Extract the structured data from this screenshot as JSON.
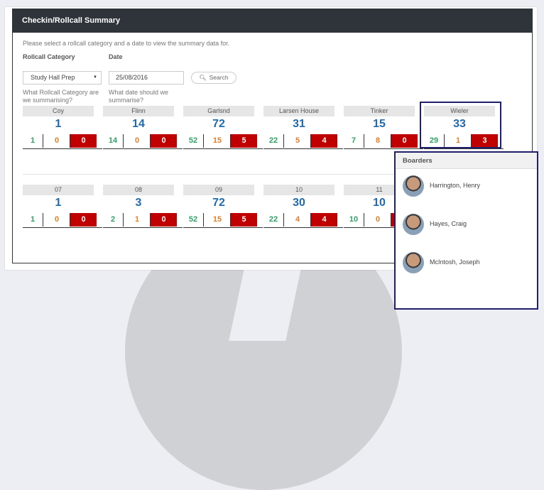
{
  "title": "Checkin/Rollcall Summary",
  "intro": "Please select a rollcall category and a date to view the summary data for.",
  "form": {
    "category_label": "Rollcall Category",
    "category_value": "Study Hall Prep",
    "category_help": "What Rollcall Category are we summarising?",
    "date_label": "Date",
    "date_value": "25/08/2016",
    "date_help": "What date should we summarise?",
    "search_label": "Search"
  },
  "colors": {
    "header": "#2e3439",
    "total": "#1f6aad",
    "green": "#2ea266",
    "orange": "#e57e27",
    "red": "#c00000",
    "highlight": "#1f1f6b"
  },
  "houses": [
    {
      "name": "Coy",
      "total": "1",
      "green": "1",
      "orange": "0",
      "red": "0"
    },
    {
      "name": "Flinn",
      "total": "14",
      "green": "14",
      "orange": "0",
      "red": "0"
    },
    {
      "name": "Garlsnd",
      "total": "72",
      "green": "52",
      "orange": "15",
      "red": "5"
    },
    {
      "name": "Larsen House",
      "total": "31",
      "green": "22",
      "orange": "5",
      "red": "4"
    },
    {
      "name": "Tinker",
      "total": "15",
      "green": "7",
      "orange": "8",
      "red": "0"
    },
    {
      "name": "Wieler",
      "total": "33",
      "green": "29",
      "orange": "1",
      "red": "3"
    }
  ],
  "grades": [
    {
      "name": "07",
      "total": "1",
      "green": "1",
      "orange": "0",
      "red": "0"
    },
    {
      "name": "08",
      "total": "3",
      "green": "2",
      "orange": "1",
      "red": "0"
    },
    {
      "name": "09",
      "total": "72",
      "green": "52",
      "orange": "15",
      "red": "5"
    },
    {
      "name": "10",
      "total": "30",
      "green": "22",
      "orange": "4",
      "red": "4"
    },
    {
      "name": "11",
      "total": "10",
      "green": "10",
      "orange": "0",
      "red": ""
    }
  ],
  "boarders": {
    "title": "Boarders",
    "people": [
      "Harrington, Henry",
      "Hayes, Craig",
      "McIntosh, Joseph"
    ]
  }
}
